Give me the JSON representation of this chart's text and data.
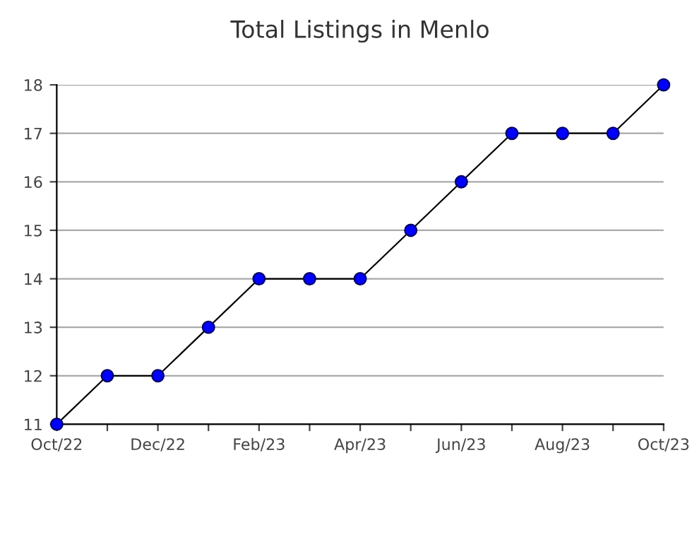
{
  "chart_data": {
    "type": "line",
    "title": "Total Listings in Menlo",
    "categories": [
      "Oct/22",
      null,
      "Dec/22",
      null,
      "Feb/23",
      null,
      "Apr/23",
      null,
      "Jun/23",
      null,
      "Aug/23",
      null,
      "Oct/23"
    ],
    "series": [
      {
        "color": "#0000ff",
        "values": [
          11,
          12,
          12,
          13,
          14,
          14,
          14,
          15,
          16,
          17,
          17,
          17,
          18
        ]
      }
    ],
    "ylim": [
      11,
      18
    ],
    "yticks": [
      11,
      12,
      13,
      14,
      15,
      16,
      17,
      18
    ],
    "grid": "y",
    "marker": "circle",
    "line_style": "solid",
    "legend": false
  }
}
